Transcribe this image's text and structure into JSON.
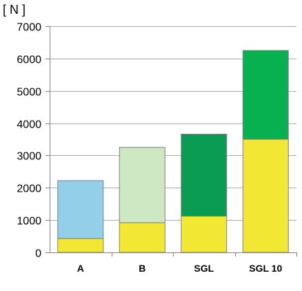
{
  "chart_data": {
    "type": "bar",
    "stacked": true,
    "unit_label": "[ N ]",
    "categories": [
      "A",
      "B",
      "SGL",
      "SGL 10"
    ],
    "ylim": [
      0,
      7000
    ],
    "yticks": [
      0,
      1000,
      2000,
      3000,
      4000,
      5000,
      6000,
      7000
    ],
    "grid": true,
    "legend": "none",
    "bars": [
      {
        "category": "A",
        "segments": [
          {
            "value": 430,
            "color": "#f2e733"
          },
          {
            "value": 1790,
            "color": "#93cfe9"
          }
        ],
        "total": 2220
      },
      {
        "category": "B",
        "segments": [
          {
            "value": 920,
            "color": "#f2e733"
          },
          {
            "value": 2330,
            "color": "#cfe8c4"
          }
        ],
        "total": 3250
      },
      {
        "category": "SGL",
        "segments": [
          {
            "value": 1120,
            "color": "#f2e733"
          },
          {
            "value": 2540,
            "color": "#0a9c52"
          }
        ],
        "total": 3660
      },
      {
        "category": "SGL 10",
        "segments": [
          {
            "value": 3500,
            "color": "#f2e733"
          },
          {
            "value": 2750,
            "color": "#08b14f"
          }
        ],
        "total": 6250
      }
    ]
  }
}
